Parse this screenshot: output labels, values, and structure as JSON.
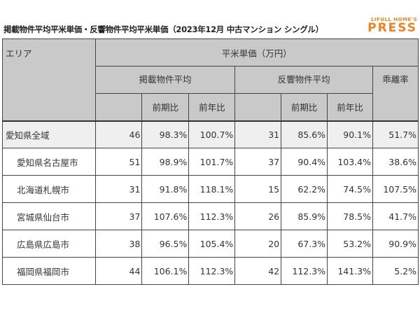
{
  "title": "掲載物件平均平米単価・反響物件平均平米単価（2023年12月 中古マンション シングル）",
  "logo": {
    "small": "LIFULL HOME'S",
    "big": "PRESS"
  },
  "header": {
    "area": "エリア",
    "unit": "平米単価（万円）",
    "listed": "掲載物件平均",
    "response": "反響物件平均",
    "gap": "乖離率",
    "qoq": "前期比",
    "yoy": "前年比"
  },
  "rows": [
    {
      "area": "愛知県全域",
      "l": "46",
      "lq": "98.3%",
      "ly": "100.7%",
      "r": "31",
      "rq": "85.6%",
      "ry": "90.1%",
      "g": "51.7%"
    },
    {
      "area": "愛知県名古屋市",
      "l": "51",
      "lq": "98.9%",
      "ly": "101.7%",
      "r": "37",
      "rq": "90.4%",
      "ry": "103.4%",
      "g": "38.6%"
    },
    {
      "area": "北海道札幌市",
      "l": "31",
      "lq": "91.8%",
      "ly": "118.1%",
      "r": "15",
      "rq": "62.2%",
      "ry": "74.5%",
      "g": "107.5%"
    },
    {
      "area": "宮城県仙台市",
      "l": "37",
      "lq": "107.6%",
      "ly": "112.3%",
      "r": "26",
      "rq": "85.9%",
      "ry": "78.5%",
      "g": "41.7%"
    },
    {
      "area": "広島県広島市",
      "l": "38",
      "lq": "96.5%",
      "ly": "105.4%",
      "r": "20",
      "rq": "67.3%",
      "ry": "53.2%",
      "g": "90.9%"
    },
    {
      "area": "福岡県福岡市",
      "l": "44",
      "lq": "106.1%",
      "ly": "112.3%",
      "r": "42",
      "rq": "112.3%",
      "ry": "141.3%",
      "g": "5.2%"
    }
  ],
  "colors": {
    "header": "#c9c9c9",
    "highlight_row": "#efefef",
    "logo": "#f0821e"
  }
}
